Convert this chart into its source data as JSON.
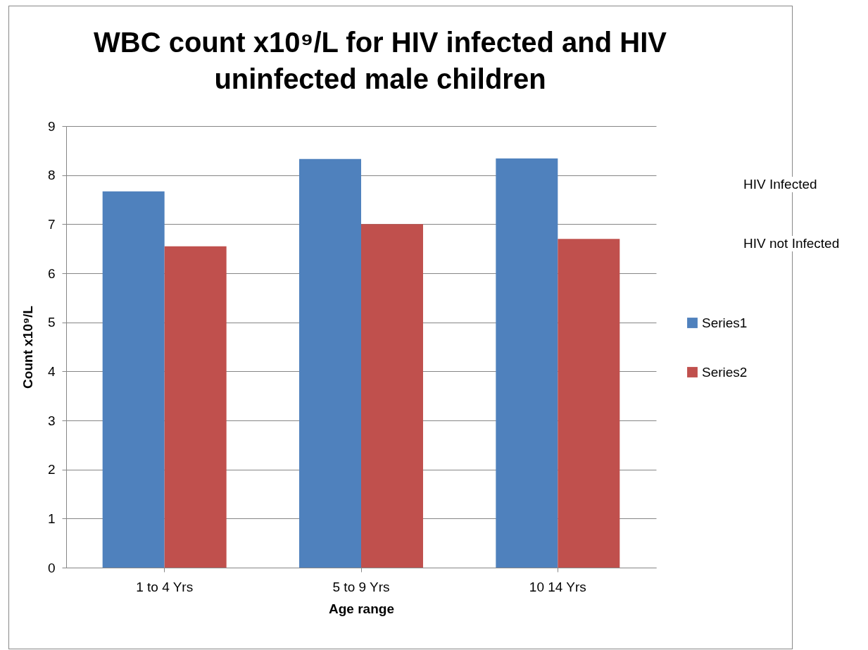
{
  "chart_data": {
    "type": "bar",
    "title": "WBC count x10⁹/L for HIV infected and HIV uninfected male children",
    "xlabel": "Age range",
    "ylabel": "Count x10⁹/L",
    "categories": [
      "1 to 4 Yrs",
      "5 to 9 Yrs",
      "10 14 Yrs"
    ],
    "series": [
      {
        "name": "Series1",
        "color": "#4f81bd",
        "values": [
          7.67,
          8.33,
          8.34
        ]
      },
      {
        "name": "Series2",
        "color": "#c0504d",
        "values": [
          6.55,
          7.0,
          6.7
        ]
      }
    ],
    "ylim": [
      0,
      9
    ],
    "yticks": [
      0,
      1,
      2,
      3,
      4,
      5,
      6,
      7,
      8,
      9
    ],
    "grid": "y",
    "legend": "right",
    "annotations": [
      "HIV Infected",
      "HIV not Infected"
    ]
  }
}
